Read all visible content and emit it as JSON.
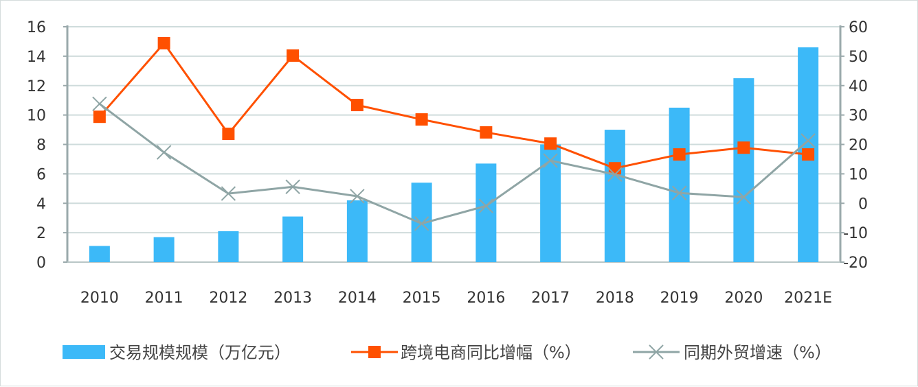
{
  "chart_data": {
    "type": "bar+line",
    "title": "",
    "categories": [
      "2010",
      "2011",
      "2012",
      "2013",
      "2014",
      "2015",
      "2016",
      "2017",
      "2018",
      "2019",
      "2020",
      "2021E"
    ],
    "left_axis": {
      "range": [
        0,
        16
      ],
      "ticks": [
        "0",
        "2",
        "4",
        "6",
        "8",
        "10",
        "12",
        "14",
        "16"
      ]
    },
    "right_axis": {
      "range": [
        -20,
        60
      ],
      "ticks": [
        "-20",
        "-10",
        "0",
        "10",
        "20",
        "30",
        "40",
        "50",
        "60"
      ]
    },
    "grid": true,
    "legend_position": "bottom",
    "series": [
      {
        "name": "交易规模规模（万亿元）",
        "type": "bar",
        "axis": "left",
        "color": "#3cb9f8",
        "values": [
          1.1,
          1.7,
          2.1,
          3.1,
          4.2,
          5.4,
          6.7,
          8.0,
          9.0,
          10.5,
          12.5,
          14.6
        ]
      },
      {
        "name": "跨境电商同比增幅（%）",
        "type": "line",
        "marker": "square",
        "axis": "right",
        "color": "#ff5000",
        "values": [
          29.4,
          54.4,
          23.6,
          50.2,
          33.4,
          28.5,
          24.1,
          20.3,
          11.9,
          16.6,
          18.9,
          16.6
        ]
      },
      {
        "name": "同期外贸增速（%）",
        "type": "line",
        "marker": "x",
        "axis": "right",
        "color": "#8fa5a5",
        "values": [
          33.8,
          17.3,
          3.3,
          5.6,
          2.4,
          -6.9,
          -0.9,
          14.5,
          9.8,
          3.5,
          2.1,
          21.3
        ]
      }
    ]
  }
}
